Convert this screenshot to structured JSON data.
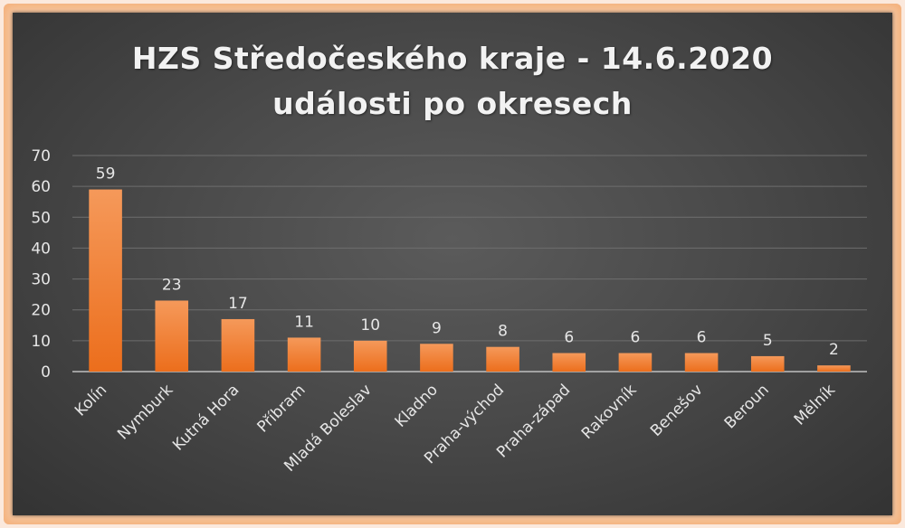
{
  "chart_data": {
    "type": "bar",
    "title_line1": "HZS Středočeského kraje - 14.6.2020",
    "title_line2": "události po okresech",
    "categories": [
      "Kolín",
      "Nymburk",
      "Kutná Hora",
      "Příbram",
      "Mladá Boleslav",
      "Kladno",
      "Praha-východ",
      "Praha-západ",
      "Rakovník",
      "Benešov",
      "Beroun",
      "Mělník"
    ],
    "values": [
      59,
      23,
      17,
      11,
      10,
      9,
      8,
      6,
      6,
      6,
      5,
      2
    ],
    "ylim": [
      0,
      70
    ],
    "yticks": [
      "0",
      "10",
      "20",
      "30",
      "40",
      "50",
      "60",
      "70"
    ],
    "grid": true,
    "legend": "none",
    "bar_color": "#f07f2e"
  }
}
